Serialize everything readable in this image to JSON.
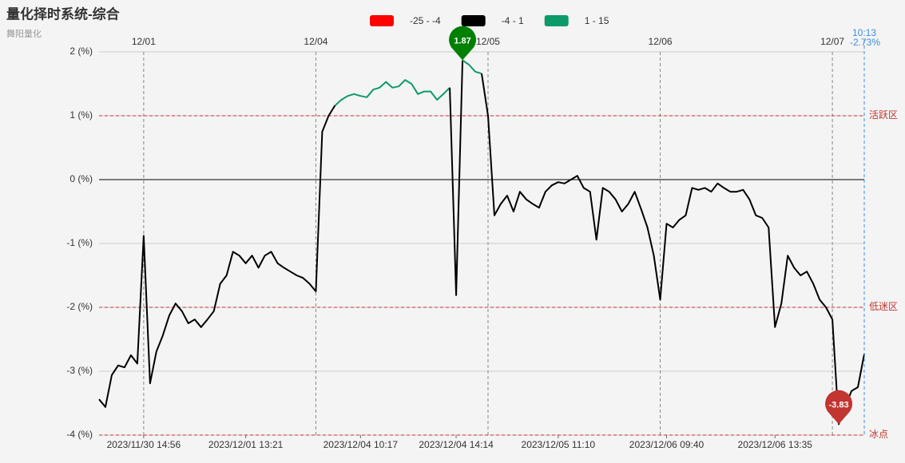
{
  "chart_data": {
    "type": "line",
    "title": "量化择时系统-综合",
    "subtitle": "舞阳量化",
    "ylim": [
      -4,
      2
    ],
    "yticks": [
      {
        "value": -4,
        "label": "-4 (%)"
      },
      {
        "value": -3,
        "label": "-3 (%)"
      },
      {
        "value": -2,
        "label": "-2 (%)"
      },
      {
        "value": -1,
        "label": "-1 (%)"
      },
      {
        "value": 0,
        "label": "0 (%)"
      },
      {
        "value": 1,
        "label": "1 (%)"
      },
      {
        "value": 2,
        "label": "2 (%)"
      }
    ],
    "xlim": [
      0,
      120
    ],
    "xticks": [
      {
        "value": 7,
        "label": "2023/11/30 14:56"
      },
      {
        "value": 23,
        "label": "2023/12/01 13:21"
      },
      {
        "value": 41,
        "label": "2023/12/04 10:17"
      },
      {
        "value": 56,
        "label": "2023/12/04 14:14"
      },
      {
        "value": 72,
        "label": "2023/12/05 11:10"
      },
      {
        "value": 89,
        "label": "2023/12/06 09:40"
      },
      {
        "value": 106,
        "label": "2023/12/06 13:35"
      }
    ],
    "x2ticks": [
      {
        "value": 7,
        "label": "12/01"
      },
      {
        "value": 34,
        "label": "12/04"
      },
      {
        "value": 61,
        "label": "12/05"
      },
      {
        "value": 88,
        "label": "12/06"
      },
      {
        "value": 115,
        "label": "12/07"
      }
    ],
    "pieces": [
      {
        "min": -25,
        "max": -4,
        "label": "-25 - -4",
        "color": "#ff0000"
      },
      {
        "min": -4,
        "max": 1,
        "label": "-4 - 1",
        "color": "#000000"
      },
      {
        "min": 1,
        "max": 15,
        "label": "1 - 15",
        "color": "#0c9a69"
      }
    ],
    "series": [
      {
        "values": [
          -3.44,
          -3.56,
          -3.06,
          -2.91,
          -2.94,
          -2.75,
          -2.88,
          -0.88,
          -3.19,
          -2.69,
          -2.44,
          -2.13,
          -1.94,
          -2.06,
          -2.25,
          -2.19,
          -2.31,
          -2.19,
          -2.06,
          -1.63,
          -1.5,
          -1.13,
          -1.19,
          -1.31,
          -1.19,
          -1.38,
          -1.19,
          -1.13,
          -1.31,
          -1.38,
          -1.44,
          -1.5,
          -1.54,
          -1.63,
          -1.75,
          0.75,
          1.0,
          1.16,
          1.25,
          1.31,
          1.34,
          1.31,
          1.29,
          1.41,
          1.44,
          1.53,
          1.44,
          1.46,
          1.56,
          1.5,
          1.34,
          1.38,
          1.38,
          1.25,
          1.34,
          1.44,
          -1.81,
          1.87,
          1.8,
          1.69,
          1.66,
          1.0,
          -0.56,
          -0.38,
          -0.25,
          -0.5,
          -0.19,
          -0.31,
          -0.38,
          -0.44,
          -0.19,
          -0.09,
          -0.04,
          -0.06,
          0.0,
          0.06,
          -0.13,
          -0.19,
          -0.94,
          -0.13,
          -0.19,
          -0.31,
          -0.5,
          -0.38,
          -0.19,
          -0.46,
          -0.75,
          -1.19,
          -1.88,
          -0.69,
          -0.75,
          -0.63,
          -0.56,
          -0.13,
          -0.16,
          -0.13,
          -0.19,
          -0.06,
          -0.13,
          -0.19,
          -0.19,
          -0.16,
          -0.31,
          -0.56,
          -0.6,
          -0.75,
          -2.31,
          -1.94,
          -1.19,
          -1.38,
          -1.5,
          -1.44,
          -1.63,
          -1.88,
          -2.0,
          -2.19,
          -3.83,
          -3.56,
          -3.31,
          -3.25,
          -2.73
        ]
      }
    ],
    "markers": [
      {
        "value": 1.87,
        "color": "#008000"
      },
      {
        "value": -3.83,
        "color": "#c23531"
      }
    ],
    "marklines": [
      {
        "value": 1,
        "label": "活跃区"
      },
      {
        "value": -2,
        "label": "低迷区"
      },
      {
        "value": -4,
        "label": "冰点"
      }
    ],
    "last_point": {
      "time": "10:13",
      "label": "-2.73%"
    }
  }
}
